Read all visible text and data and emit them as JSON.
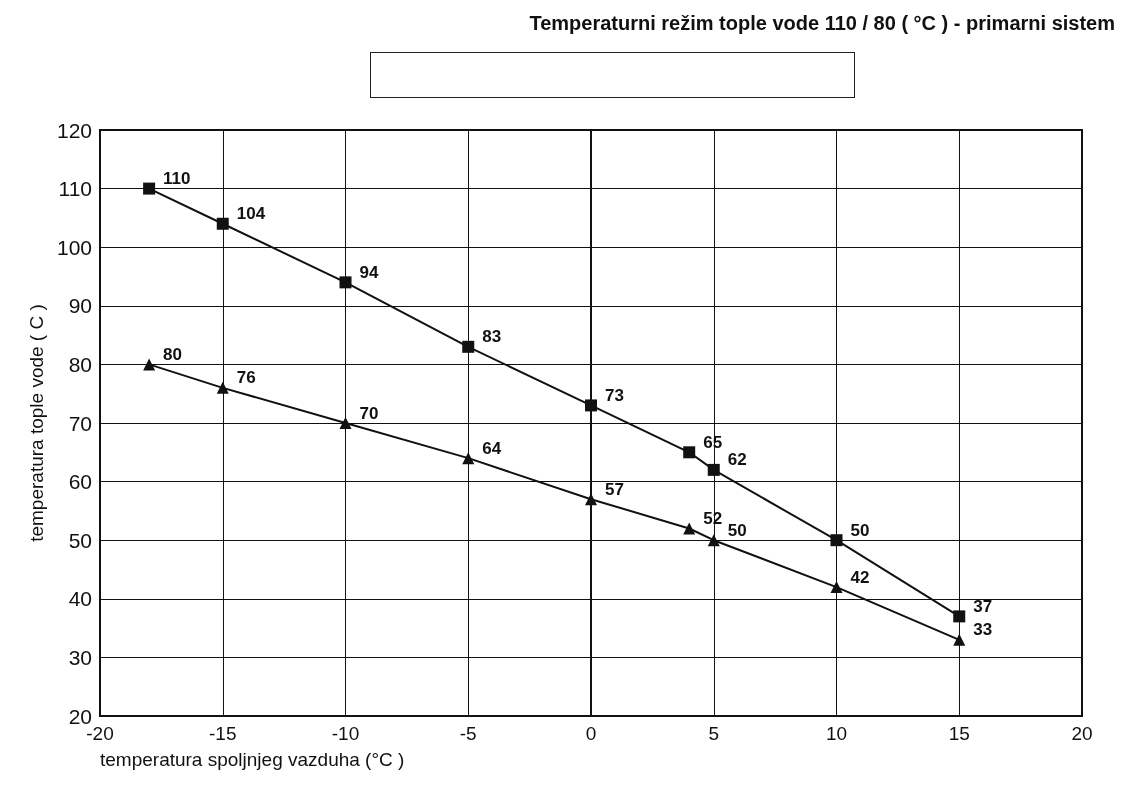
{
  "chart_data": {
    "type": "line",
    "title": "Temperaturni režim tople vode 110 / 80 ( °C ) - primarni sistem",
    "xlabel": "temperatura spoljnjeg vazduha (°C )",
    "ylabel": "temperatura tople vode ( C )",
    "x": [
      -18,
      -15,
      -10,
      -5,
      0,
      4,
      5,
      10,
      15
    ],
    "series": [
      {
        "color": "#111111",
        "marker": "square",
        "values": [
          110,
          104,
          94,
          83,
          73,
          65,
          62,
          50,
          37
        ]
      },
      {
        "color": "#111111",
        "marker": "triangle",
        "values": [
          80,
          76,
          70,
          64,
          57,
          52,
          50,
          42,
          33
        ]
      }
    ],
    "xlim": [
      -20,
      20
    ],
    "xticks": [
      -20,
      -15,
      -10,
      -5,
      0,
      5,
      10,
      15,
      20
    ],
    "ylim": [
      20,
      120
    ],
    "yticks": [
      20,
      30,
      40,
      50,
      60,
      70,
      80,
      90,
      100,
      110,
      120
    ],
    "grid": true,
    "data_labels": true,
    "line_style": "solid"
  }
}
